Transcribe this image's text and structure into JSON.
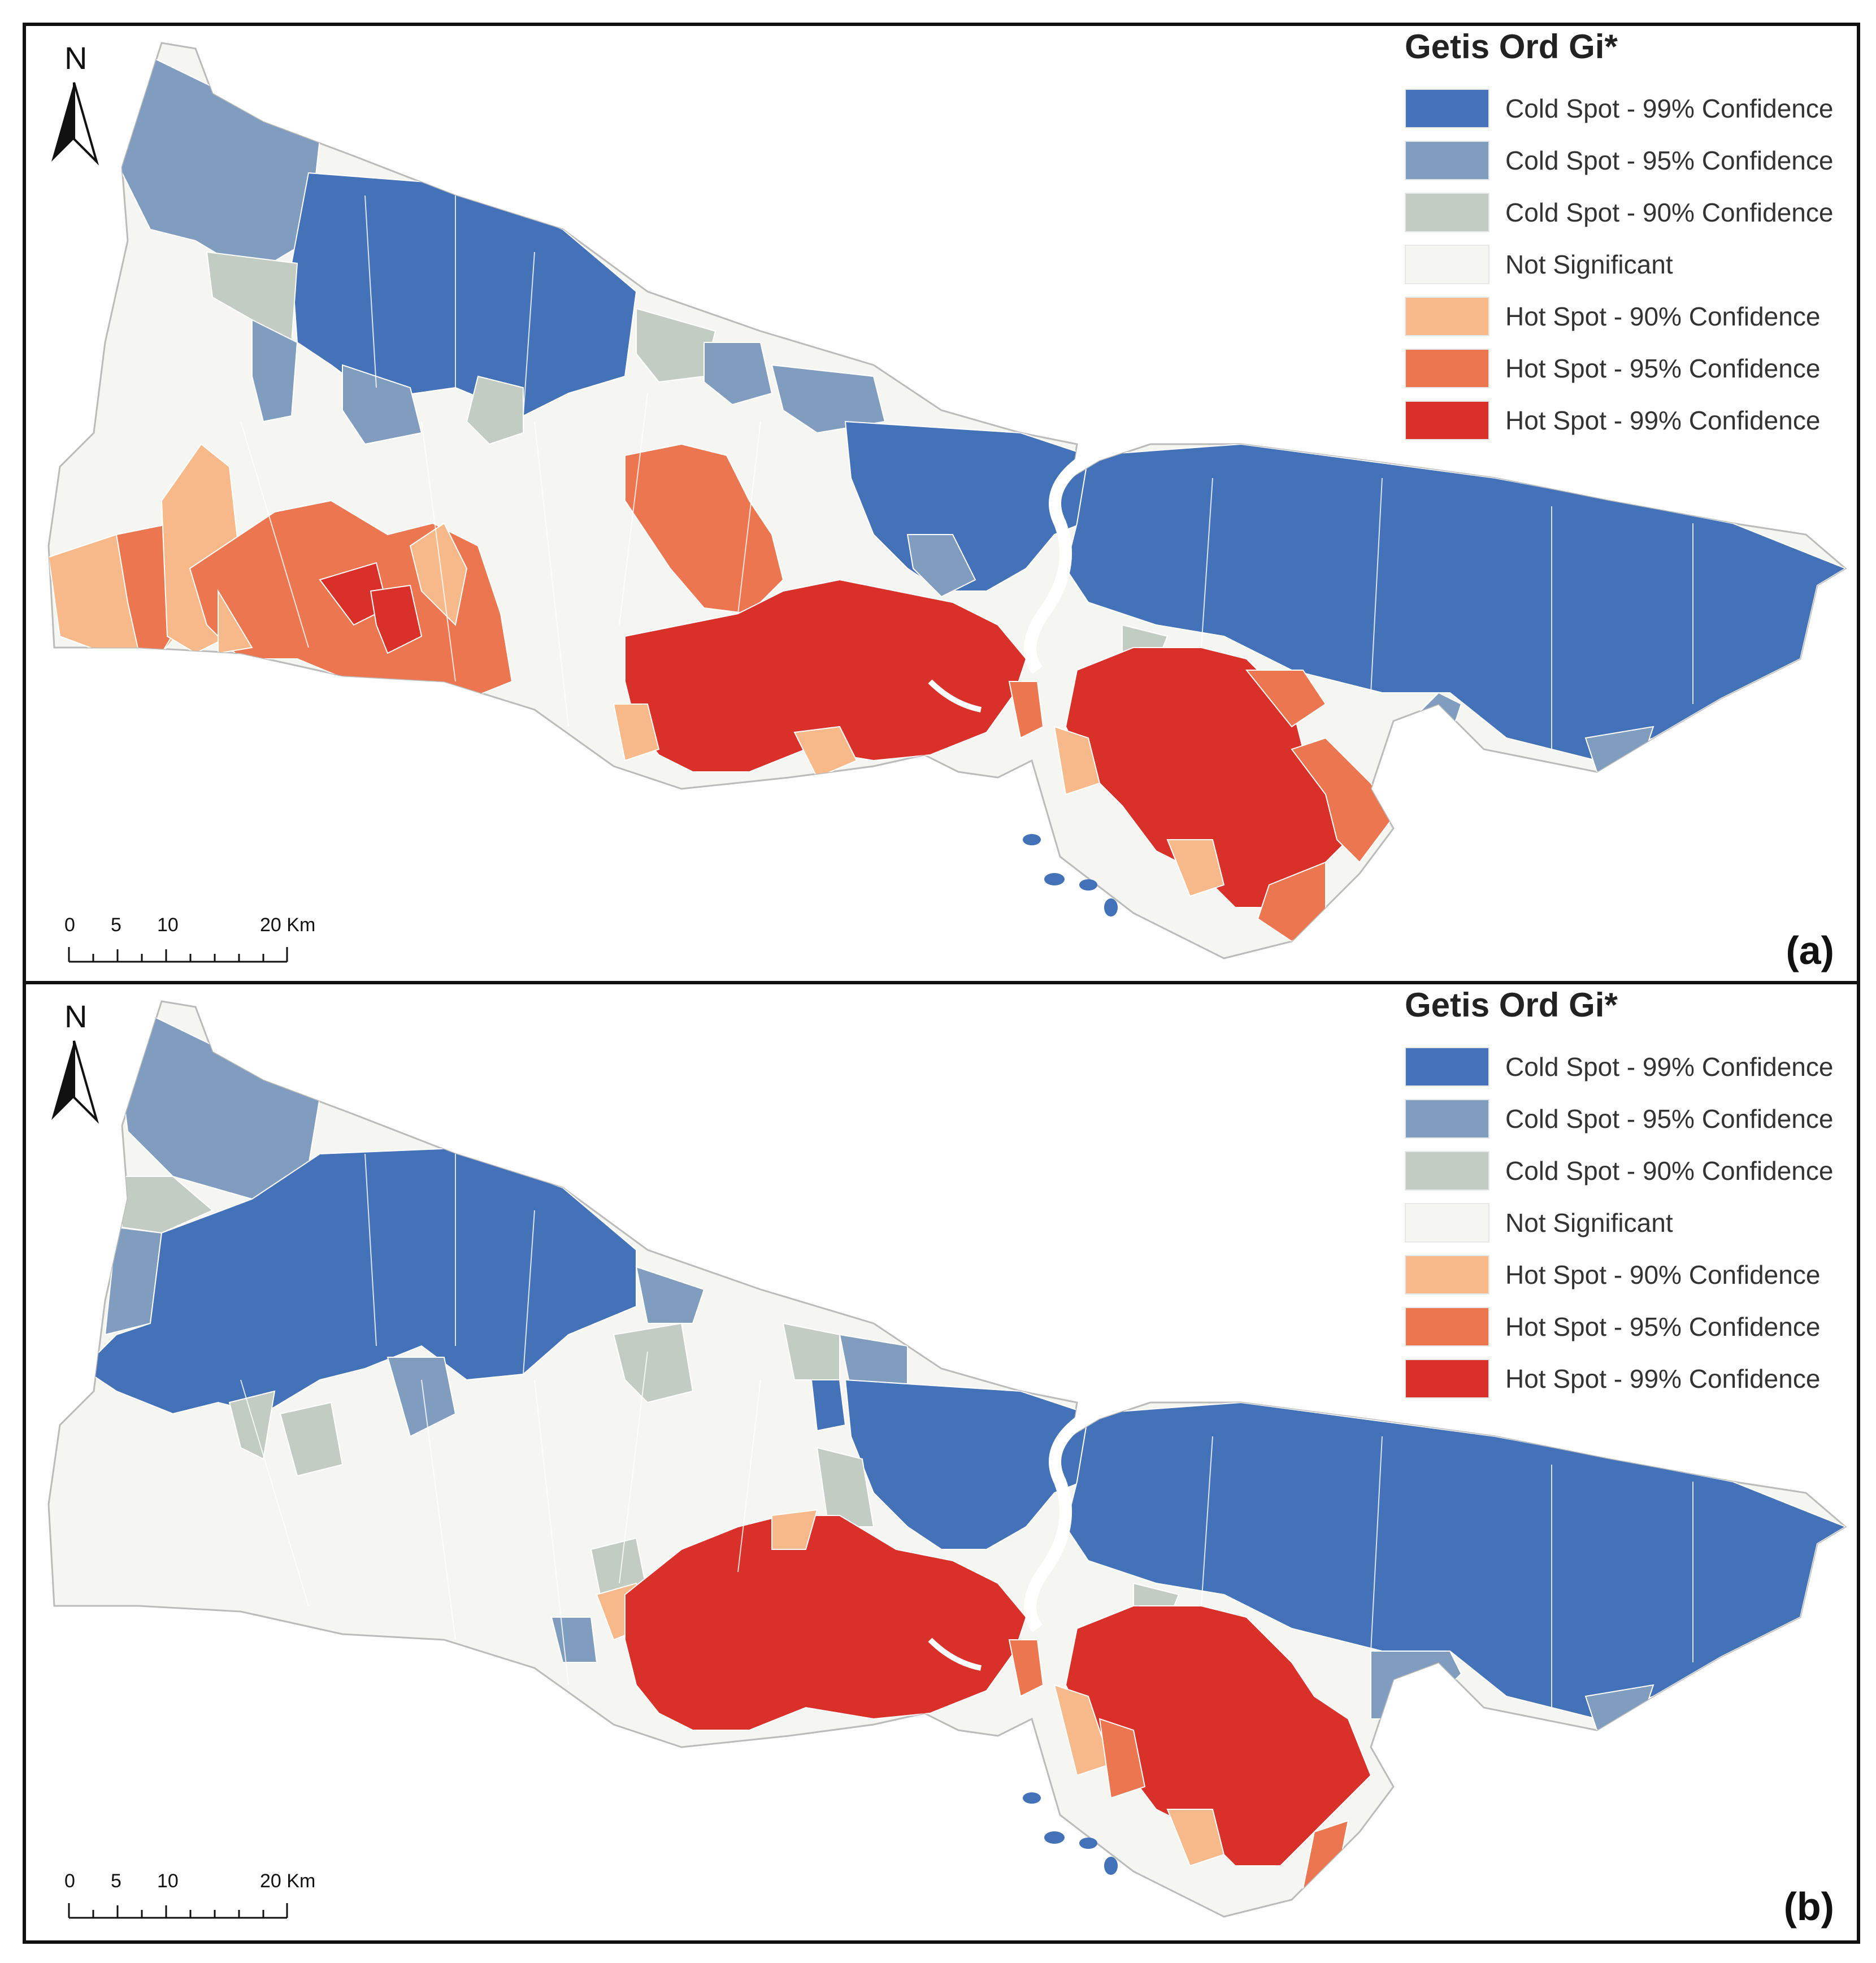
{
  "panels": [
    {
      "id": "a",
      "label": "(a)",
      "north_label": "N",
      "legend": {
        "title": "Getis Ord Gi*",
        "items": [
          {
            "label": "Cold Spot - 99% Confidence",
            "color": "#4472b8"
          },
          {
            "label": "Cold Spot - 95% Confidence",
            "color": "#809dc0"
          },
          {
            "label": "Cold Spot - 90% Confidence",
            "color": "#c3ccc2"
          },
          {
            "label": "Not Significant",
            "color": "#f5f5f1"
          },
          {
            "label": "Hot Spot - 90% Confidence",
            "color": "#f8b98a"
          },
          {
            "label": "Hot Spot - 95% Confidence",
            "color": "#ec7650"
          },
          {
            "label": "Hot Spot - 99% Confidence",
            "color": "#d93129"
          }
        ]
      },
      "scale": {
        "ticks": [
          "0",
          "5",
          "10",
          "20 Km"
        ]
      }
    },
    {
      "id": "b",
      "label": "(b)",
      "north_label": "N",
      "legend": {
        "title": "Getis Ord Gi*",
        "items": [
          {
            "label": "Cold Spot - 99% Confidence",
            "color": "#4472b8"
          },
          {
            "label": "Cold Spot - 95% Confidence",
            "color": "#809dc0"
          },
          {
            "label": "Cold Spot - 90% Confidence",
            "color": "#c3ccc2"
          },
          {
            "label": "Not Significant",
            "color": "#f5f5f1"
          },
          {
            "label": "Hot Spot - 90% Confidence",
            "color": "#f8b98a"
          },
          {
            "label": "Hot Spot - 95% Confidence",
            "color": "#ec7650"
          },
          {
            "label": "Hot Spot - 99% Confidence",
            "color": "#d93129"
          }
        ]
      },
      "scale": {
        "ticks": [
          "0",
          "5",
          "10",
          "20 Km"
        ]
      }
    }
  ]
}
